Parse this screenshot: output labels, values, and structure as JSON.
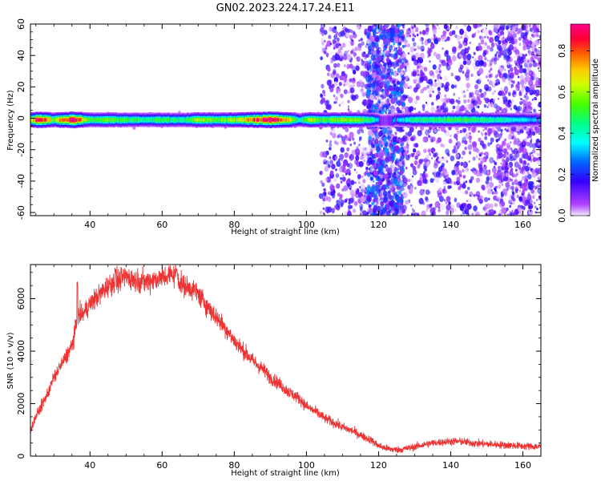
{
  "title": "GN02.2023.224.17.24.E11",
  "chart_data": [
    {
      "type": "heatmap",
      "xlabel": "Height of straight line (km)",
      "ylabel": "Frequency (Hz)",
      "xlim": [
        23.5,
        165
      ],
      "ylim": [
        -62,
        60
      ],
      "xticks": [
        40,
        60,
        80,
        100,
        120,
        140,
        160
      ],
      "yticks": [
        -60,
        -40,
        -20,
        0,
        20,
        40,
        60
      ],
      "band_center_hz": -1,
      "band_profile": [
        {
          "x": 24,
          "amp": 0.7
        },
        {
          "x": 26,
          "amp": 0.95
        },
        {
          "x": 30,
          "amp": 0.55
        },
        {
          "x": 32,
          "amp": 0.8
        },
        {
          "x": 35,
          "amp": 0.95
        },
        {
          "x": 40,
          "amp": 0.5
        },
        {
          "x": 45,
          "amp": 0.55
        },
        {
          "x": 55,
          "amp": 0.45
        },
        {
          "x": 60,
          "amp": 0.5
        },
        {
          "x": 65,
          "amp": 0.45
        },
        {
          "x": 70,
          "amp": 0.6
        },
        {
          "x": 75,
          "amp": 0.55
        },
        {
          "x": 80,
          "amp": 0.6
        },
        {
          "x": 85,
          "amp": 0.8
        },
        {
          "x": 90,
          "amp": 0.95
        },
        {
          "x": 95,
          "amp": 0.7
        },
        {
          "x": 98,
          "amp": 0.4
        },
        {
          "x": 101,
          "amp": 0.65
        },
        {
          "x": 105,
          "amp": 0.5
        },
        {
          "x": 110,
          "amp": 0.6
        },
        {
          "x": 115,
          "amp": 0.55
        },
        {
          "x": 118,
          "amp": 0.45
        },
        {
          "x": 121,
          "amp": 0.2
        },
        {
          "x": 124,
          "amp": 0.3
        },
        {
          "x": 130,
          "amp": 0.45
        },
        {
          "x": 140,
          "amp": 0.5
        },
        {
          "x": 150,
          "amp": 0.45
        },
        {
          "x": 160,
          "amp": 0.35
        },
        {
          "x": 165,
          "amp": 0.3
        }
      ],
      "noise_regions": [
        {
          "x_range": [
            104,
            117
          ],
          "density": "sparse"
        },
        {
          "x_range": [
            117,
            127
          ],
          "density": "dense"
        },
        {
          "x_range": [
            127,
            152
          ],
          "density": "sparse"
        },
        {
          "x_range": [
            152,
            165
          ],
          "density": "moderate"
        }
      ],
      "colorbar": {
        "label": "Normalized spectral amplitude",
        "range": [
          0.0,
          0.93
        ],
        "ticks": [
          0.0,
          0.2,
          0.4,
          0.6,
          0.8
        ],
        "tick_labels": [
          "0.0",
          "0.2",
          "0.4",
          "0.6",
          "0.8"
        ],
        "colormap": "gist_rainbow_r"
      }
    },
    {
      "type": "line",
      "xlabel": "Height of straight line (km)",
      "ylabel": "SNR (10 * v/v)",
      "xlim": [
        23.5,
        165
      ],
      "ylim": [
        0,
        7300
      ],
      "xticks": [
        40,
        60,
        80,
        100,
        120,
        140,
        160
      ],
      "yticks": [
        0,
        2000,
        4000,
        6000
      ],
      "series": [
        {
          "color": "#ee3333",
          "x": [
            23.5,
            25,
            28,
            30,
            33,
            35,
            36,
            36.5,
            37,
            38,
            40,
            43,
            45,
            48,
            50,
            53,
            55,
            58,
            60,
            62,
            64,
            65,
            66,
            68,
            70,
            72,
            75,
            78,
            80,
            82,
            85,
            88,
            90,
            93,
            95,
            98,
            100,
            103,
            105,
            108,
            110,
            113,
            115,
            118,
            120,
            122,
            124,
            126,
            128,
            130,
            133,
            135,
            138,
            140,
            143,
            145,
            148,
            150,
            153,
            155,
            158,
            160,
            163,
            165
          ],
          "y": [
            1000,
            1500,
            2300,
            3000,
            3700,
            4200,
            4800,
            5200,
            5400,
            5400,
            5800,
            6200,
            6500,
            6700,
            6850,
            6700,
            6650,
            6750,
            6800,
            6900,
            6950,
            6600,
            6500,
            6400,
            6200,
            5800,
            5300,
            4800,
            4400,
            4100,
            3650,
            3300,
            3000,
            2700,
            2450,
            2200,
            1900,
            1650,
            1450,
            1250,
            1100,
            950,
            800,
            600,
            400,
            300,
            250,
            250,
            300,
            350,
            450,
            500,
            540,
            560,
            560,
            520,
            480,
            460,
            440,
            420,
            400,
            380,
            370,
            360
          ]
        }
      ],
      "spikes": [
        {
          "x": 36.5,
          "y": 6650
        },
        {
          "x": 64,
          "y": 7250
        },
        {
          "x": 47,
          "y": 7200
        }
      ]
    }
  ]
}
